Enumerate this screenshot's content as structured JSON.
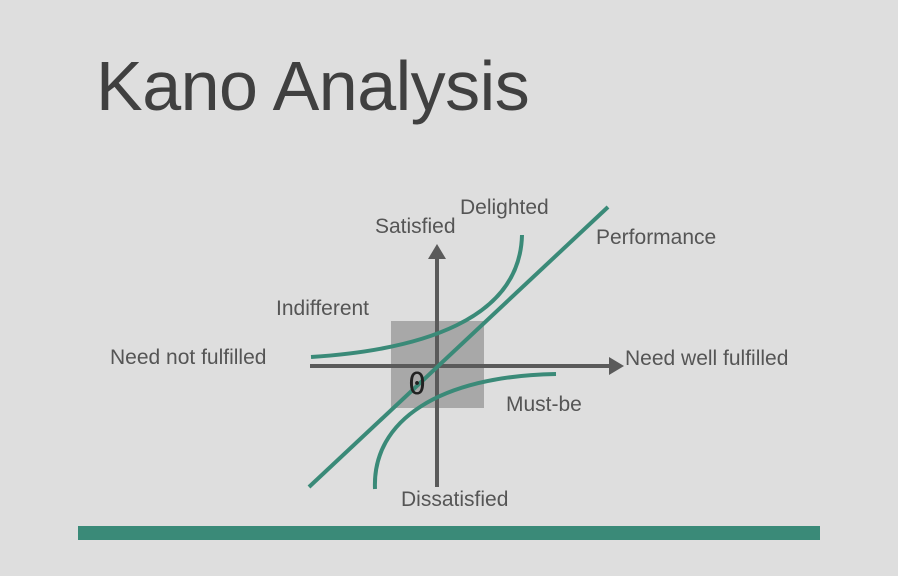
{
  "title": "Kano Analysis",
  "labels": {
    "delighted": "Delighted",
    "satisfied": "Satisfied",
    "performance": "Performance",
    "indifferent": "Indifferent",
    "need_not_fulfilled": "Need not fulfilled",
    "need_well_fulfilled": "Need well fulfilled",
    "origin": "0",
    "must_be": "Must-be",
    "dissatisfied": "Dissatisfied"
  },
  "colors": {
    "background": "#dedede",
    "curve": "#3a8a78",
    "axis": "#5a5a5a",
    "center_box": "#a8a8a8",
    "bottom_bar": "#3a8a78"
  }
}
